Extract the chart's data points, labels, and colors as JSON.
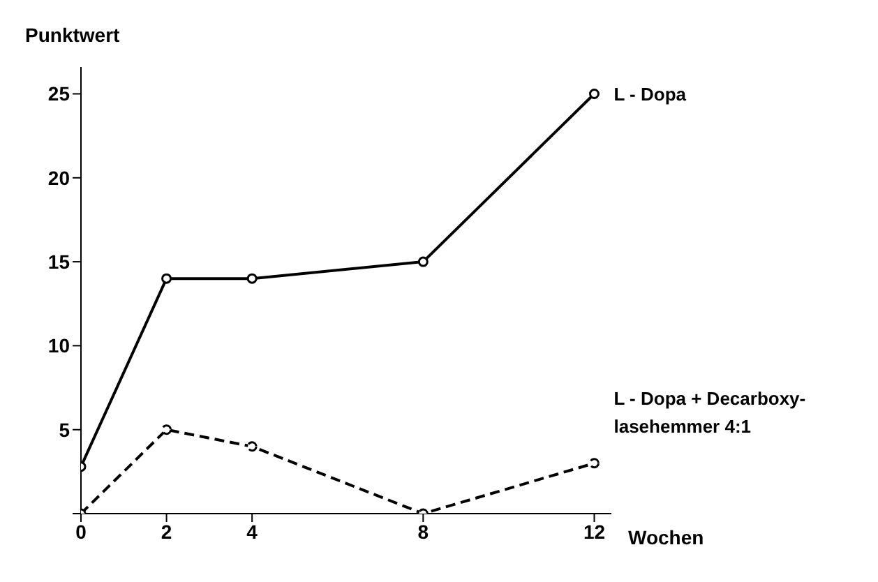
{
  "chart_data": {
    "type": "line",
    "xlabel": "Wochen",
    "ylabel": "Punktwert",
    "x": [
      0,
      2,
      4,
      8,
      12
    ],
    "series": [
      {
        "name": "L - Dopa",
        "color": "#000000",
        "values": [
          2.8,
          14,
          14,
          15,
          25
        ],
        "line_style": "solid"
      },
      {
        "name": "L - Dopa + Decarboxy-\nlasehemmer 4:1",
        "color": "#000000",
        "values": [
          0,
          5,
          4,
          0,
          3
        ],
        "line_style": "dashed"
      }
    ],
    "xlim": [
      0,
      12.4
    ],
    "xticks": [
      0,
      2,
      4,
      8,
      12
    ],
    "ylim": [
      0,
      26.6
    ],
    "yticks": [
      {
        "value": 0,
        "label": null
      },
      5,
      10,
      15,
      20,
      25
    ],
    "grid": false,
    "marker": "circle"
  }
}
